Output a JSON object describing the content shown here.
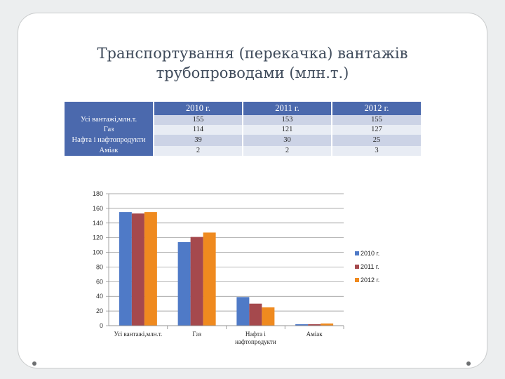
{
  "title": {
    "line1": "Транспортування (перекачка) вантажів",
    "line2": "трубопроводами (млн.т.)"
  },
  "table": {
    "headers": [
      "2010 г.",
      "2011 г.",
      "2012 г."
    ],
    "rows": [
      {
        "label": "Усі вантажі,млн.т.",
        "values": [
          "155",
          "153",
          "155"
        ]
      },
      {
        "label": "Газ",
        "values": [
          "114",
          "121",
          "127"
        ]
      },
      {
        "label": "Нафта і нафтопродукти",
        "values": [
          "39",
          "30",
          "25"
        ]
      },
      {
        "label": "Аміак",
        "values": [
          "2",
          "2",
          "3"
        ]
      }
    ]
  },
  "chart_data": {
    "type": "bar",
    "categories": [
      "Усі вантажі,млн.т.",
      "Газ",
      "Нафта і нафтопродукти",
      "Аміак"
    ],
    "series": [
      {
        "name": "2010 г.",
        "values": [
          155,
          114,
          39,
          2
        ],
        "color": "#4f7ac7"
      },
      {
        "name": "2011 г.",
        "values": [
          153,
          121,
          30,
          2
        ],
        "color": "#a5494d"
      },
      {
        "name": "2012 г.",
        "values": [
          155,
          127,
          25,
          3
        ],
        "color": "#ef8a1f"
      }
    ],
    "ylim": [
      0,
      180
    ],
    "yticks": [
      0,
      20,
      40,
      60,
      80,
      100,
      120,
      140,
      160,
      180
    ],
    "grid": true,
    "legend": "right"
  }
}
